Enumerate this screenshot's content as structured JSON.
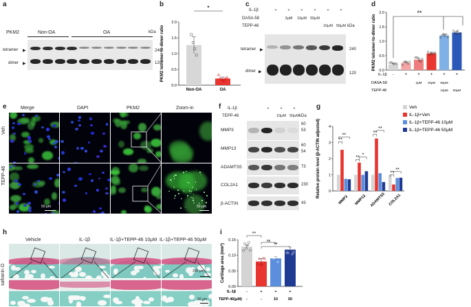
{
  "panel_letters": {
    "a": "a",
    "b": "b",
    "c": "c",
    "d": "d",
    "e": "e",
    "f": "f",
    "g": "g",
    "h": "h",
    "i": "i"
  },
  "panel_a": {
    "protein": "PKM2",
    "groups": [
      "Non-OA",
      "OA"
    ],
    "kda": "kDa",
    "tetramer": "tetramer",
    "dimer": "dimer",
    "mw": [
      "240",
      "120"
    ]
  },
  "panel_c": {
    "rows": [
      {
        "label": "IL-1β",
        "cells": [
          "+",
          "+",
          "+",
          "+",
          "+",
          "+"
        ]
      },
      {
        "label": "DASA-58",
        "cells": [
          "",
          "2μM",
          "10μM",
          "50μM",
          "",
          ""
        ]
      },
      {
        "label": "TEPP-46",
        "cells": [
          "",
          "",
          "",
          "",
          "10μM",
          "50μM"
        ]
      }
    ],
    "kda": "kDa",
    "tetramer": "tetramer",
    "dimer": "dimer",
    "mw": [
      "240",
      "120"
    ]
  },
  "panel_e": {
    "columns": [
      "Merge",
      "DAPI",
      "PKM2",
      "Zoom-in"
    ],
    "rows": [
      "Veh",
      "TEPP-46"
    ],
    "scale_bar": "50 μm",
    "scale_bar_zoom": "50 μm"
  },
  "panel_f": {
    "rows": [
      {
        "label": "IL-1β",
        "cells": [
          "",
          "+",
          "+",
          "+"
        ]
      },
      {
        "label": "TEPP-46",
        "cells": [
          "",
          "",
          "10μM",
          "50μM"
        ]
      }
    ],
    "kda": "kDa",
    "proteins": [
      "MMP3",
      "MMP13",
      "ADAMTS5",
      "COL2A1",
      "β-ACTIN"
    ],
    "mw": [
      "60",
      "53",
      "60",
      "54",
      "73",
      "230",
      "43"
    ]
  },
  "panel_h": {
    "columns": [
      "Vehicle",
      "IL-1β",
      "IL-1β+TEPP-46 10μM",
      "IL-1β+TEPP-46 50μM"
    ],
    "stain": "safranin O",
    "scale_bar": "250 μm",
    "scale_bar_zoom": "50 μm"
  },
  "chart_data": [
    {
      "id": "b",
      "type": "bar",
      "categories": [
        "Non-OA",
        "OA"
      ],
      "values": [
        1.27,
        0.21
      ],
      "errors": [
        0.26,
        0.05
      ],
      "points": [
        [
          1.6,
          1.35,
          1.15,
          0.95
        ],
        [
          0.33,
          0.22,
          0.17,
          0.13,
          0.2,
          0.25
        ]
      ],
      "ylabel": "PKM2 tetramer-to-dimer ratio",
      "ylim": [
        0,
        2.0
      ],
      "yticks": [
        "0.0",
        "0.5",
        "1.0",
        "1.5",
        "2.0"
      ],
      "significance": "*",
      "colors": [
        "#d7d7d7",
        "#e8352f"
      ]
    },
    {
      "id": "d",
      "type": "bar",
      "categories": [
        "1",
        "2",
        "3",
        "4",
        "5",
        "6"
      ],
      "values": [
        0.2,
        0.25,
        0.36,
        0.58,
        1.2,
        1.3
      ],
      "errors": [
        0.03,
        0.03,
        0.04,
        0.04,
        0.05,
        0.04
      ],
      "ylabel": "PKM2 tetramer-to-dimer ratio",
      "ylim": [
        0,
        2.0
      ],
      "yticks": [
        "0.0",
        "0.5",
        "1.0",
        "1.5",
        "2.0"
      ],
      "significance": "**",
      "colors": [
        "#d4d4d4",
        "#f4a5a5",
        "#ef7d7d",
        "#e8352f",
        "#7fb0e6",
        "#2b57b8"
      ],
      "conditions": [
        {
          "label": "IL-1β",
          "cells": [
            "-",
            "+",
            "+",
            "+",
            "+",
            "+"
          ]
        },
        {
          "label": "DASA-58",
          "cells": [
            "",
            "",
            "2μM",
            "10μM",
            "50μM",
            ""
          ],
          "compact": "2μM 10μM 50μM"
        },
        {
          "label": "TEPP-46",
          "cells": [
            "",
            "",
            "",
            "",
            "10μM",
            "50μM"
          ],
          "compact": "10μM 50μM"
        }
      ]
    },
    {
      "id": "g",
      "type": "bar",
      "categories": [
        "MMP3",
        "MMP13",
        "ADAMTS5",
        "COL2A1"
      ],
      "series": [
        {
          "name": "Veh",
          "values": [
            1.0,
            1.0,
            1.0,
            1.0
          ],
          "color": "#d4d4d4"
        },
        {
          "name": "IL-1β+Veh",
          "values": [
            2.55,
            1.75,
            3.25,
            0.4
          ],
          "color": "#e8352f"
        },
        {
          "name": "IL-1β+TEPP-46 10μM",
          "values": [
            0.75,
            1.0,
            1.1,
            0.8
          ],
          "color": "#5b8fde"
        },
        {
          "name": "IL-1β+TEPP-46 50μM",
          "values": [
            0.72,
            1.22,
            0.55,
            0.82
          ],
          "color": "#1f3a93"
        }
      ],
      "ylabel": "Relative protein level (β-ACTIN adjusted)",
      "ylim": [
        0,
        4
      ],
      "yticks": [
        "0",
        "1",
        "2",
        "3",
        "4"
      ],
      "significance": [
        "**",
        "**",
        "**",
        "*",
        "**",
        "**",
        "**",
        "**"
      ]
    },
    {
      "id": "i",
      "type": "bar",
      "categories": [
        "1",
        "2",
        "3",
        "4"
      ],
      "values": [
        0.128,
        0.08,
        0.09,
        0.118
      ],
      "errors": [
        0.004,
        0.01,
        0.005,
        0.008
      ],
      "ylabel": "Cartilage area (mm²)",
      "ylim": [
        0,
        0.15
      ],
      "yticks": [
        "0.00",
        "0.05",
        "0.10",
        "0.15"
      ],
      "significance": [
        "**",
        "ns",
        "**"
      ],
      "colors": [
        "#d4d4d4",
        "#e8352f",
        "#5b8fde",
        "#1f3a93"
      ],
      "conditions": [
        {
          "label": "IL-1β",
          "cells": [
            "-",
            "+",
            "+",
            "+"
          ]
        },
        {
          "label": "TEPP-46(μM)",
          "cells": [
            "-",
            "-",
            "10",
            "50"
          ]
        }
      ]
    }
  ]
}
